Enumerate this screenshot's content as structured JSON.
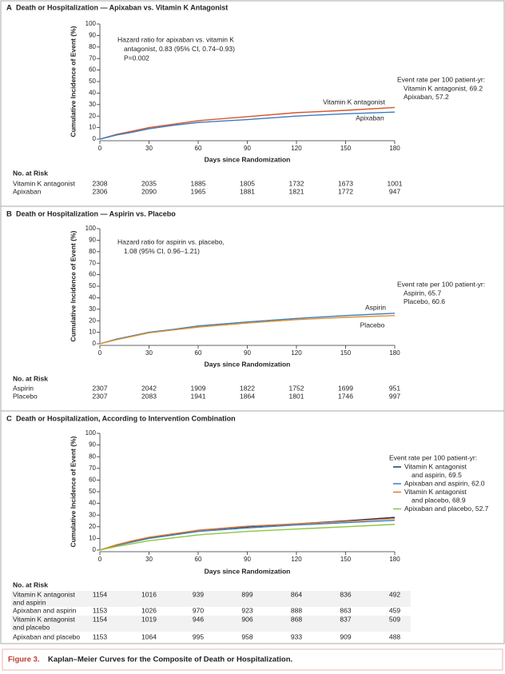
{
  "chart_data": [
    {
      "type": "line",
      "panel": "A",
      "title": "Death or Hospitalization — Apixaban vs. Vitamin K Antagonist",
      "x_label": "Days since Randomization",
      "y_label": "Cumulative Incidence of Event (%)",
      "xlim": [
        0,
        180
      ],
      "xticks": [
        0,
        30,
        60,
        90,
        120,
        150,
        180
      ],
      "ylim": [
        0,
        100
      ],
      "yticks": [
        0,
        10,
        20,
        30,
        40,
        50,
        60,
        70,
        80,
        90,
        100
      ],
      "x": [
        0,
        10,
        20,
        30,
        45,
        60,
        90,
        120,
        150,
        180
      ],
      "series": [
        {
          "name": "Vitamin K antagonist",
          "color": "#d9542b",
          "values": [
            0,
            4,
            7,
            10,
            13,
            16,
            19.5,
            23,
            25,
            27.5
          ]
        },
        {
          "name": "Apixaban",
          "color": "#3a7cc3",
          "values": [
            0,
            3.5,
            6,
            9,
            12,
            14.5,
            17,
            20,
            22,
            23.5
          ]
        }
      ],
      "hazard_text": [
        "Hazard ratio for apixaban vs. vitamin K",
        "antagonist, 0.83 (95% CI, 0.74–0.93)",
        "P=0.002"
      ],
      "event_rate_title": "Event rate per 100 patient-yr:",
      "event_rates": [
        {
          "lines": [
            "Vitamin K antagonist, 69.2"
          ]
        },
        {
          "lines": [
            "Apixaban, 57.2"
          ]
        }
      ],
      "risk_table": {
        "title": "No. at Risk",
        "rows": [
          {
            "label": [
              "Vitamin K antagonist"
            ],
            "values": [
              2308,
              2035,
              1885,
              1805,
              1732,
              1673,
              1001
            ]
          },
          {
            "label": [
              "Apixaban"
            ],
            "values": [
              2306,
              2090,
              1965,
              1881,
              1821,
              1772,
              947
            ]
          }
        ]
      }
    },
    {
      "type": "line",
      "panel": "B",
      "title": "Death or Hospitalization — Aspirin vs. Placebo",
      "x_label": "Days since Randomization",
      "y_label": "Cumulative Incidence of Event (%)",
      "xlim": [
        0,
        180
      ],
      "xticks": [
        0,
        30,
        60,
        90,
        120,
        150,
        180
      ],
      "ylim": [
        0,
        100
      ],
      "yticks": [
        0,
        10,
        20,
        30,
        40,
        50,
        60,
        70,
        80,
        90,
        100
      ],
      "x": [
        0,
        10,
        20,
        30,
        45,
        60,
        90,
        120,
        150,
        180
      ],
      "series": [
        {
          "name": "Aspirin",
          "color": "#3a7cc3",
          "values": [
            0,
            4,
            7,
            10,
            12.5,
            15.5,
            19,
            22,
            24.5,
            26.5
          ]
        },
        {
          "name": "Placebo",
          "color": "#e0922e",
          "values": [
            0,
            3.5,
            6.5,
            9.5,
            12,
            14.5,
            18,
            21,
            23,
            24.5
          ]
        }
      ],
      "hazard_text": [
        "Hazard ratio for aspirin vs. placebo,",
        "1.08 (95% CI, 0.96–1.21)"
      ],
      "event_rate_title": "Event rate per 100 patient-yr:",
      "event_rates": [
        {
          "lines": [
            "Aspirin, 65.7"
          ]
        },
        {
          "lines": [
            "Placebo, 60.6"
          ]
        }
      ],
      "risk_table": {
        "title": "No. at Risk",
        "rows": [
          {
            "label": [
              "Aspirin"
            ],
            "values": [
              2307,
              2042,
              1909,
              1822,
              1752,
              1699,
              951
            ]
          },
          {
            "label": [
              "Placebo"
            ],
            "values": [
              2307,
              2083,
              1941,
              1864,
              1801,
              1746,
              997
            ]
          }
        ]
      }
    },
    {
      "type": "line",
      "panel": "C",
      "title": "Death or Hospitalization, According to Intervention Combination",
      "x_label": "Days since Randomization",
      "y_label": "Cumulative Incidence of Event (%)",
      "xlim": [
        0,
        180
      ],
      "xticks": [
        0,
        30,
        60,
        90,
        120,
        150,
        180
      ],
      "ylim": [
        0,
        100
      ],
      "yticks": [
        0,
        10,
        20,
        30,
        40,
        50,
        60,
        70,
        80,
        90,
        100
      ],
      "x": [
        0,
        10,
        20,
        30,
        45,
        60,
        90,
        120,
        150,
        180
      ],
      "series": [
        {
          "color": "#1f3564",
          "values": [
            0,
            4,
            7.5,
            10.5,
            13.5,
            17,
            20,
            22.5,
            25,
            28
          ]
        },
        {
          "color": "#3a7cc3",
          "values": [
            0,
            4,
            7,
            10,
            13,
            16,
            19,
            21.5,
            23.5,
            25.5
          ]
        },
        {
          "color": "#e07a2e",
          "values": [
            0,
            4.5,
            8,
            11,
            14,
            17,
            20.5,
            22.5,
            24.5,
            27
          ]
        },
        {
          "color": "#8cc63e",
          "values": [
            0,
            3,
            5.5,
            8,
            10.5,
            13,
            16,
            18,
            20,
            22
          ]
        }
      ],
      "event_rate_title": "Event rate per 100 patient-yr:",
      "event_rates": [
        {
          "lines": [
            "Vitamin K antagonist",
            "and aspirin, 69.5"
          ]
        },
        {
          "lines": [
            "Apixaban and aspirin, 62.0"
          ]
        },
        {
          "lines": [
            "Vitamin K antagonist",
            "and placebo, 68.9"
          ]
        },
        {
          "lines": [
            "Apixaban and placebo, 52.7"
          ]
        }
      ],
      "risk_table": {
        "title": "No. at Risk",
        "rows": [
          {
            "label": [
              "Vitamin K antagonist",
              "and aspirin"
            ],
            "values": [
              1154,
              1016,
              939,
              899,
              864,
              836,
              492
            ]
          },
          {
            "label": [
              "Apixaban and aspirin"
            ],
            "values": [
              1153,
              1026,
              970,
              923,
              888,
              863,
              459
            ]
          },
          {
            "label": [
              "Vitamin K antagonist",
              "and placebo"
            ],
            "values": [
              1154,
              1019,
              946,
              906,
              868,
              837,
              509
            ]
          },
          {
            "label": [
              "Apixaban and placebo"
            ],
            "values": [
              1153,
              1064,
              995,
              958,
              933,
              909,
              488
            ]
          }
        ]
      }
    }
  ],
  "caption": {
    "label": "Figure 3.",
    "text": "Kaplan–Meier Curves for the Composite of Death or Hospitalization."
  }
}
